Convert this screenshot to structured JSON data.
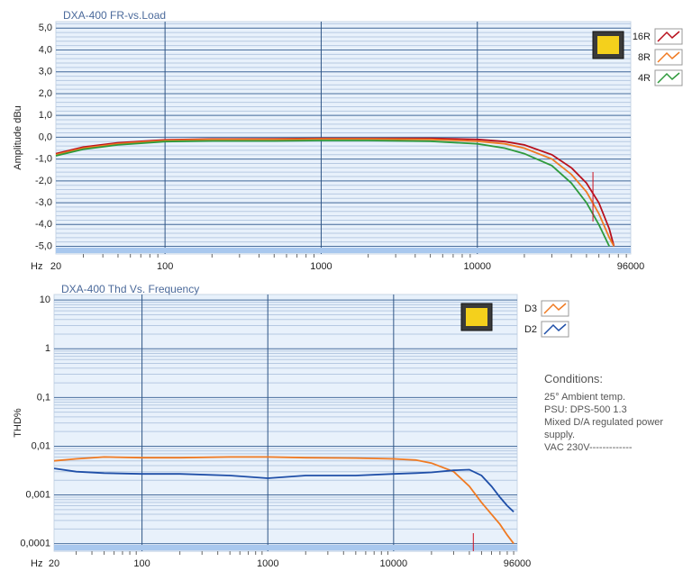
{
  "chart_data": [
    {
      "type": "line",
      "title": "DXA-400  FR-vs.Load",
      "y_label": "Amplitude dBu",
      "x_label": "Hz",
      "x_log": true,
      "y_log": false,
      "grid": true,
      "minor_grid": true,
      "xlim": [
        20,
        96000
      ],
      "xticks": [
        20,
        100,
        1000,
        10000,
        96000
      ],
      "ylim": [
        -5.35,
        5.3
      ],
      "yticks": [
        {
          "value": 5,
          "label": "5,0"
        },
        {
          "value": 4,
          "label": "4,0"
        },
        {
          "value": 3,
          "label": "3,0"
        },
        {
          "value": 2,
          "label": "2,0"
        },
        {
          "value": 1,
          "label": "1,0"
        },
        {
          "value": 0,
          "label": "0,0"
        },
        {
          "value": -1,
          "label": "-1,0"
        },
        {
          "value": -2,
          "label": "-2,0"
        },
        {
          "value": -3,
          "label": "-3,0"
        },
        {
          "value": -4,
          "label": "-4,0"
        },
        {
          "value": -5,
          "label": "-5,0"
        }
      ],
      "x": [
        20,
        30,
        50,
        100,
        200,
        500,
        1000,
        2000,
        5000,
        10000,
        15000,
        20000,
        30000,
        40000,
        50000,
        60000,
        70000,
        75000
      ],
      "cursor_x": 55000,
      "cursor_color": "#cc1020",
      "series": [
        {
          "name": "16R",
          "color": "#b8101c",
          "values": [
            -0.75,
            -0.45,
            -0.25,
            -0.12,
            -0.08,
            -0.07,
            -0.05,
            -0.05,
            -0.05,
            -0.1,
            -0.2,
            -0.35,
            -0.8,
            -1.4,
            -2.1,
            -3.0,
            -4.2,
            -5.0
          ]
        },
        {
          "name": "8R",
          "color": "#f07a22",
          "values": [
            -0.8,
            -0.5,
            -0.3,
            -0.15,
            -0.1,
            -0.1,
            -0.08,
            -0.08,
            -0.1,
            -0.18,
            -0.3,
            -0.5,
            -1.0,
            -1.7,
            -2.5,
            -3.5,
            -4.6,
            -5.0
          ]
        },
        {
          "name": "4R",
          "color": "#2e9a3c",
          "values": [
            -0.85,
            -0.55,
            -0.35,
            -0.2,
            -0.17,
            -0.17,
            -0.15,
            -0.15,
            -0.18,
            -0.3,
            -0.5,
            -0.75,
            -1.3,
            -2.1,
            -3.0,
            -4.0,
            -5.0,
            null
          ]
        }
      ]
    },
    {
      "type": "line",
      "title": "DXA-400  Thd Vs. Frequency",
      "y_label": "THD%",
      "x_label": "Hz",
      "x_log": true,
      "y_log": true,
      "grid": true,
      "minor_grid": true,
      "xlim": [
        20,
        96000
      ],
      "xticks": [
        20,
        100,
        1000,
        10000,
        96000
      ],
      "ylim": [
        7e-05,
        13
      ],
      "yticks": [
        10,
        1,
        {
          "value": 0.1,
          "label": "0,1"
        },
        {
          "value": 0.01,
          "label": "0,01"
        },
        {
          "value": 0.001,
          "label": "0,001"
        },
        {
          "value": 0.0001,
          "label": "0,0001"
        }
      ],
      "x": [
        20,
        30,
        50,
        100,
        200,
        500,
        1000,
        2000,
        5000,
        10000,
        15000,
        20000,
        30000,
        40000,
        50000,
        60000,
        70000,
        80000,
        90000
      ],
      "cursor_x": 43000,
      "cursor_color": "#cc1020",
      "series": [
        {
          "name": "D3",
          "color": "#f07a22",
          "values": [
            0.005,
            0.0055,
            0.006,
            0.0058,
            0.0058,
            0.006,
            0.006,
            0.0058,
            0.0057,
            0.0055,
            0.0052,
            0.0045,
            0.003,
            0.0015,
            0.0007,
            0.0004,
            0.00025,
            0.00015,
            0.0001
          ]
        },
        {
          "name": "D2",
          "color": "#1f4fa8",
          "values": [
            0.0035,
            0.003,
            0.0028,
            0.0027,
            0.0027,
            0.0025,
            0.0022,
            0.0025,
            0.0025,
            0.0027,
            0.0028,
            0.0029,
            0.0032,
            0.0033,
            0.0025,
            0.0015,
            0.0009,
            0.0006,
            0.00045
          ]
        }
      ],
      "annotations": [
        "Conditions:",
        "25° Ambient temp.",
        "PSU: DPS-500 1.3",
        "Mixed D/A regulated power supply.",
        "VAC 230V-------------"
      ]
    }
  ]
}
